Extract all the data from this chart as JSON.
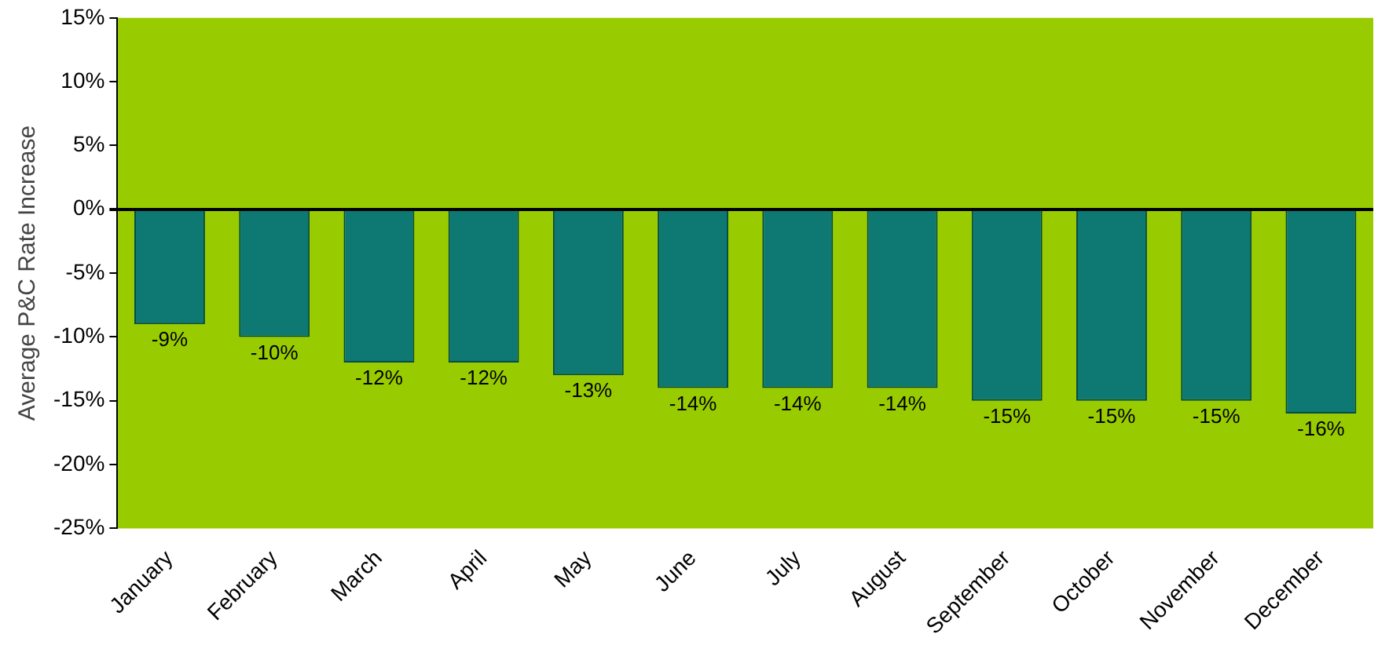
{
  "chart_data": {
    "type": "bar",
    "ylabel": "Average P&C Rate Increase",
    "categories": [
      "January",
      "February",
      "March",
      "April",
      "May",
      "June",
      "July",
      "August",
      "September",
      "October",
      "November",
      "December"
    ],
    "values": [
      -9,
      -10,
      -12,
      -12,
      -13,
      -14,
      -14,
      -14,
      -15,
      -15,
      -15,
      -16
    ],
    "value_labels": [
      "-9%",
      "-10%",
      "-12%",
      "-12%",
      "-13%",
      "-14%",
      "-14%",
      "-14%",
      "-15%",
      "-15%",
      "-15%",
      "-16%"
    ],
    "color": "#0e7873",
    "ylim": [
      -25,
      15
    ],
    "yticks": [
      {
        "value": -25,
        "label": "-25%"
      },
      {
        "value": -20,
        "label": "-20%"
      },
      {
        "value": -15,
        "label": "-15%"
      },
      {
        "value": -10,
        "label": "-10%"
      },
      {
        "value": -5,
        "label": "-5%"
      },
      {
        "value": 0,
        "label": "0%"
      },
      {
        "value": 5,
        "label": "5%"
      },
      {
        "value": 10,
        "label": "10%"
      },
      {
        "value": 15,
        "label": "15%"
      }
    ],
    "legend": false
  }
}
